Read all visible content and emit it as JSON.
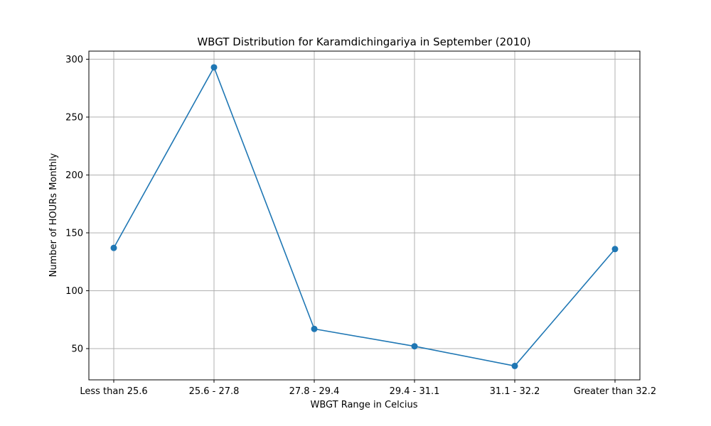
{
  "chart_data": {
    "type": "line",
    "title": "WBGT Distribution for Karamdichingariya in September (2010)",
    "xlabel": "WBGT Range in Celcius",
    "ylabel": "Number of HOURs Monthly",
    "categories": [
      "Less than 25.6",
      "25.6 - 27.8",
      "27.8 - 29.4",
      "29.4 - 31.1",
      "31.1 - 32.2",
      "Greater than 32.2"
    ],
    "series": [
      {
        "values": [
          137,
          293,
          67,
          52,
          35,
          136
        ]
      }
    ],
    "ylim": [
      23,
      307
    ],
    "yticks": [
      50,
      100,
      150,
      200,
      250,
      300
    ],
    "grid": true,
    "legend": "none",
    "colors": {
      "line": "#1f77b4",
      "grid": "#b0b0b0",
      "axis": "#000000"
    }
  }
}
